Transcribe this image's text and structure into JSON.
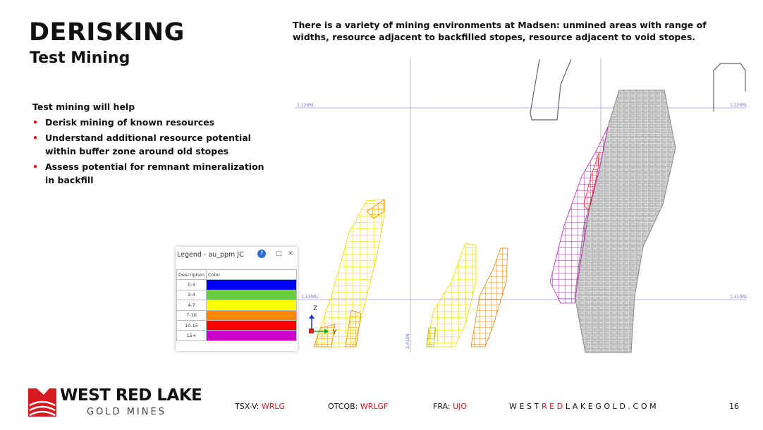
{
  "header": {
    "title": "DERISKING",
    "subtitle": "Test Mining"
  },
  "intro": "There is a variety of mining environments at Madsen: unmined areas with range of widths, resource adjacent to backfilled stopes, resource adjacent to void stopes.",
  "body": {
    "lead": "Test mining will help",
    "bullets": [
      "Derisk mining of known resources",
      "Understand additional resource potential within buffer zone around old stopes",
      "Assess potential for remnant mineralization in backfill"
    ]
  },
  "figure": {
    "level_labels": [
      "1,126RL",
      "1,126RL",
      "1,110RL",
      "1,110RL"
    ],
    "northing_label": "2,415N",
    "axes": [
      "Z",
      "Y"
    ],
    "legend": {
      "title": "Legend - au_ppm JC",
      "help": "?",
      "columns": [
        "Description",
        "Color"
      ],
      "rows": [
        {
          "label": "0-3",
          "color": "#0000ff"
        },
        {
          "label": "3-4",
          "color": "#66cc44"
        },
        {
          "label": "4-7",
          "color": "#ffff00"
        },
        {
          "label": "7-10",
          "color": "#ff8800"
        },
        {
          "label": "10-15",
          "color": "#ff0000"
        },
        {
          "label": "15+",
          "color": "#cc00cc"
        }
      ]
    }
  },
  "footer": {
    "brand": "WEST RED LAKE",
    "brand_sub": "GOLD MINES",
    "tickers": [
      {
        "exchange": "TSX-V:",
        "symbol": "WRLG"
      },
      {
        "exchange": "OTCQB:",
        "symbol": "WRLGF"
      },
      {
        "exchange": "FRA:",
        "symbol": "UJO"
      }
    ],
    "website": [
      "WEST",
      "RED",
      "LAKEGOLD.COM"
    ],
    "page": "16"
  }
}
